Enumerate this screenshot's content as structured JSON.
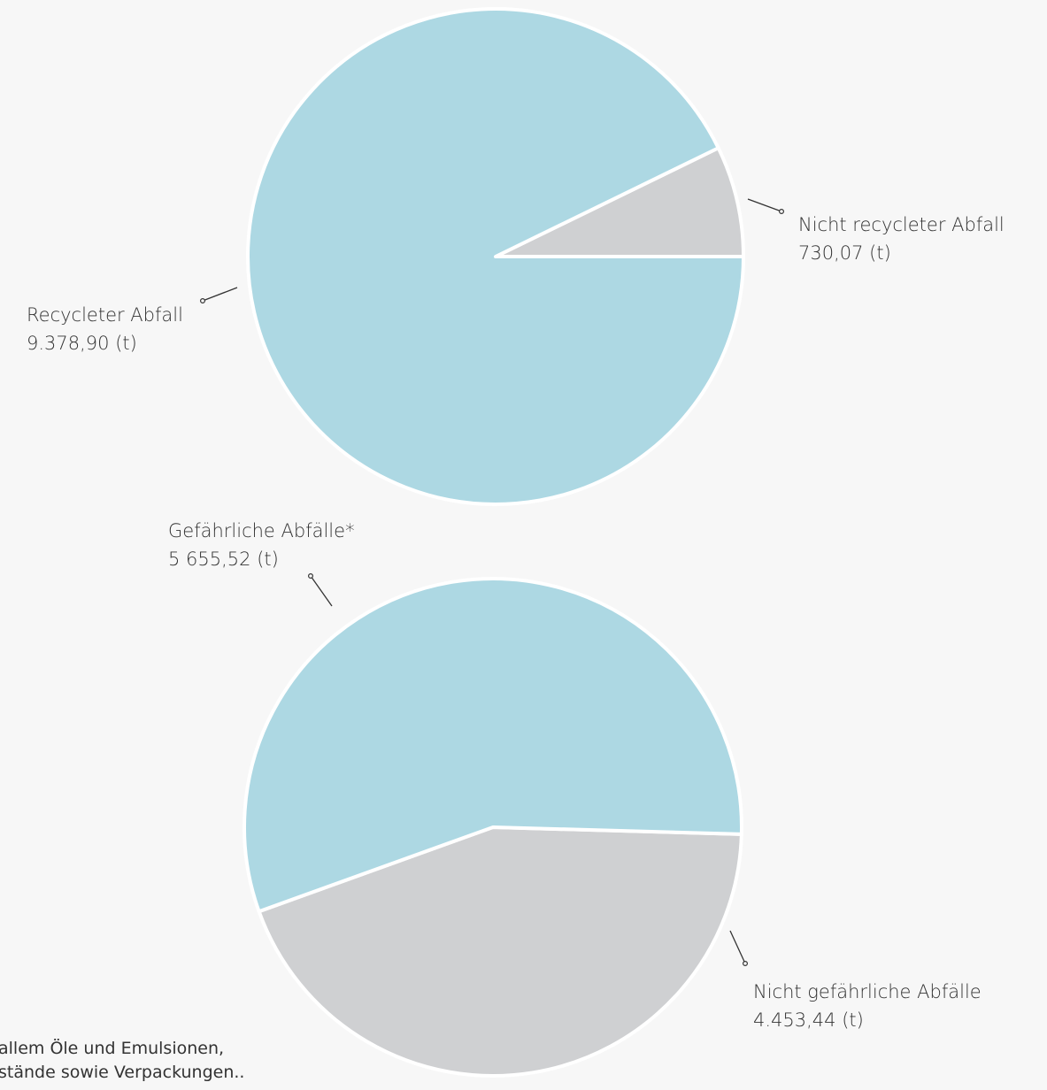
{
  "colors": {
    "slice_blue": "#add8e3",
    "slice_grey": "#cfd0d2",
    "background": "#f7f7f7",
    "text": "#333333",
    "separator": "#ffffff"
  },
  "chart_data": [
    {
      "type": "pie",
      "slices": [
        {
          "label": "Nicht recycleter Abfall",
          "value": 730.07,
          "value_text": "730,07 (t)",
          "color": "#cfd0d2"
        },
        {
          "label": "Recycleter Abfall",
          "value": 9378.9,
          "value_text": "9.378,90 (t)",
          "color": "#add8e3"
        }
      ]
    },
    {
      "type": "pie",
      "slices": [
        {
          "label": "Nicht gefährliche Abfälle",
          "value": 4453.44,
          "value_text": "4.453,44 (t)",
          "color": "#cfd0d2"
        },
        {
          "label": "Gefährliche Abfälle*",
          "value": 5655.52,
          "value_text": "5 655,52 (t)",
          "color": "#add8e3"
        }
      ]
    }
  ],
  "footnote": {
    "line1": "allem Öle und Emulsionen,",
    "line2": "stände sowie Verpackungen.."
  }
}
